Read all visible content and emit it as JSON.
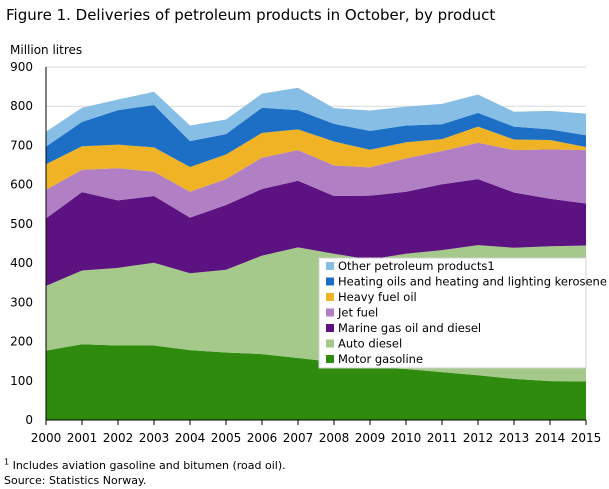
{
  "title": "Figure 1. Deliveries of petroleum products in October, by product",
  "footnote": {
    "mark": "1",
    "text": " Includes aviation gasoline and bitumen (road oil).",
    "source": "Source: Statistics Norway."
  },
  "chart_data": {
    "type": "area",
    "stacked": true,
    "title": "Figure 1. Deliveries of petroleum products in October, by product",
    "ylabel": "Million litres",
    "xlabel": "",
    "ylim": [
      0,
      900
    ],
    "yticks": [
      "0",
      "100",
      "200",
      "300",
      "400",
      "500",
      "600",
      "700",
      "800",
      "900"
    ],
    "grid": true,
    "legend_position": "inside bottom-right",
    "categories": [
      "2000",
      "2001",
      "2002",
      "2003",
      "2004",
      "2005",
      "2006",
      "2007",
      "2008",
      "2009",
      "2010",
      "2011",
      "2012",
      "2013",
      "2014",
      "2015"
    ],
    "series": [
      {
        "name": "Motor gasoline",
        "color": "#2e8b0e",
        "values": [
          177,
          193,
          190,
          190,
          178,
          172,
          168,
          158,
          148,
          135,
          130,
          122,
          114,
          105,
          99,
          98
        ]
      },
      {
        "name": "Auto diesel",
        "color": "#a4c98a",
        "values": [
          165,
          188,
          198,
          211,
          196,
          211,
          251,
          282,
          276,
          274,
          294,
          311,
          332,
          334,
          344,
          347
        ]
      },
      {
        "name": "Marine gas oil and diesel",
        "color": "#5c1280",
        "values": [
          172,
          200,
          172,
          170,
          142,
          165,
          170,
          170,
          147,
          163,
          158,
          168,
          168,
          141,
          121,
          107
        ]
      },
      {
        "name": "Jet fuel",
        "color": "#b07fc4",
        "values": [
          73,
          57,
          82,
          62,
          66,
          66,
          80,
          78,
          78,
          72,
          85,
          85,
          93,
          108,
          126,
          136
        ]
      },
      {
        "name": "Heavy fuel oil",
        "color": "#f0b325",
        "values": [
          65,
          60,
          60,
          62,
          63,
          63,
          63,
          53,
          61,
          45,
          41,
          30,
          41,
          27,
          24,
          8
        ]
      },
      {
        "name": "Heating oils and heating and lighting kerosene",
        "color": "#1c6fc4",
        "values": [
          45,
          62,
          88,
          108,
          66,
          52,
          64,
          49,
          45,
          48,
          43,
          38,
          35,
          33,
          27,
          30
        ]
      },
      {
        "name": "Other petroleum products1",
        "color": "#86bee6",
        "values": [
          38,
          36,
          27,
          34,
          40,
          37,
          36,
          57,
          40,
          52,
          48,
          52,
          47,
          38,
          47,
          55
        ]
      }
    ]
  }
}
